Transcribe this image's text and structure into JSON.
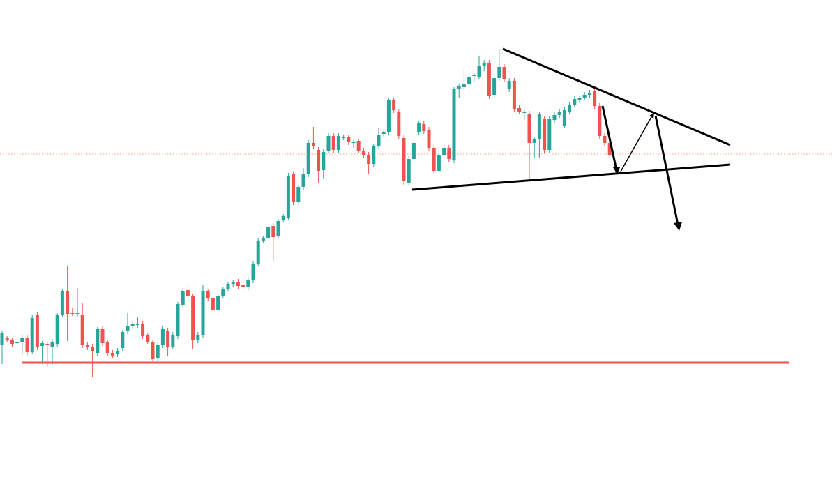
{
  "chart_data": {
    "type": "candlestick",
    "up_color": "#26a69a",
    "down_color": "#ef5350",
    "ylim": [
      0,
      717
    ],
    "open": [
      222,
      232,
      229,
      225,
      227,
      233,
      212,
      265,
      221,
      224,
      219,
      223,
      265,
      299,
      268,
      267,
      266,
      222,
      220,
      211,
      245,
      227,
      211,
      209,
      218,
      242,
      249,
      251,
      252,
      237,
      227,
      203,
      222,
      243,
      220,
      235,
      280,
      301,
      292,
      229,
      237,
      299,
      289,
      273,
      293,
      303,
      310,
      313,
      309,
      305,
      315,
      339,
      372,
      375,
      393,
      379,
      402,
      405,
      467,
      427,
      449,
      467,
      512,
      502,
      473,
      501,
      522,
      502,
      520,
      520,
      512,
      515,
      501,
      495,
      482,
      507,
      525,
      527,
      574,
      557,
      519,
      455,
      489,
      527,
      539,
      531,
      505,
      472,
      495,
      505,
      487,
      589,
      592,
      597,
      609,
      607,
      622,
      627,
      581,
      605,
      621,
      589,
      601,
      562,
      555,
      554,
      512,
      517,
      547,
      502,
      545,
      552,
      537,
      557,
      567,
      574,
      577,
      581,
      587,
      565,
      522,
      512
    ],
    "high": [
      242,
      235,
      232,
      230,
      236,
      236,
      265,
      269,
      228,
      227,
      231,
      268,
      302,
      335,
      275,
      304,
      282,
      226,
      223,
      248,
      249,
      230,
      215,
      218,
      244,
      268,
      256,
      262,
      256,
      240,
      230,
      226,
      249,
      247,
      241,
      284,
      304,
      310,
      296,
      241,
      309,
      303,
      293,
      297,
      306,
      313,
      315,
      317,
      320,
      320,
      343,
      376,
      379,
      395,
      397,
      403,
      410,
      469,
      470,
      452,
      476,
      516,
      535,
      506,
      503,
      526,
      526,
      526,
      524,
      523,
      516,
      518,
      505,
      499,
      510,
      534,
      530,
      577,
      577,
      561,
      523,
      493,
      516,
      544,
      543,
      535,
      509,
      507,
      510,
      509,
      592,
      597,
      619,
      611,
      613,
      637,
      631,
      631,
      609,
      647,
      625,
      605,
      605,
      566,
      561,
      558,
      521,
      557,
      551,
      551,
      556,
      560,
      563,
      571,
      579,
      580,
      585,
      588,
      591,
      569,
      526,
      516
    ],
    "low": [
      195,
      226,
      220,
      222,
      210,
      208,
      209,
      215,
      195,
      191,
      193,
      219,
      262,
      228,
      264,
      263,
      218,
      215,
      177,
      207,
      221,
      207,
      203,
      205,
      214,
      238,
      245,
      246,
      231,
      223,
      200,
      200,
      218,
      207,
      216,
      231,
      276,
      288,
      217,
      225,
      233,
      285,
      268,
      269,
      289,
      299,
      306,
      303,
      301,
      301,
      311,
      335,
      368,
      371,
      343,
      375,
      398,
      401,
      423,
      423,
      445,
      463,
      503,
      455,
      460,
      497,
      498,
      498,
      516,
      509,
      505,
      497,
      491,
      468,
      478,
      503,
      521,
      523,
      555,
      518,
      452,
      451,
      485,
      523,
      525,
      501,
      468,
      468,
      491,
      485,
      483,
      576,
      588,
      593,
      600,
      603,
      615,
      575,
      577,
      601,
      600,
      585,
      556,
      553,
      545,
      458,
      490,
      490,
      498,
      498,
      541,
      548,
      533,
      553,
      563,
      570,
      573,
      577,
      560,
      518,
      508,
      491
    ],
    "close": [
      240,
      229,
      224,
      227,
      233,
      212,
      261,
      219,
      225,
      222,
      227,
      265,
      299,
      267,
      267,
      268,
      222,
      219,
      213,
      245,
      225,
      211,
      207,
      214,
      241,
      249,
      252,
      252,
      235,
      227,
      202,
      222,
      245,
      220,
      237,
      281,
      300,
      292,
      229,
      237,
      299,
      289,
      272,
      293,
      303,
      310,
      312,
      307,
      305,
      315,
      339,
      372,
      375,
      392,
      377,
      400,
      407,
      465,
      427,
      449,
      467,
      512,
      507,
      472,
      499,
      522,
      502,
      522,
      520,
      513,
      513,
      501,
      495,
      482,
      507,
      524,
      527,
      574,
      559,
      522,
      457,
      489,
      512,
      541,
      529,
      505,
      472,
      495,
      505,
      489,
      589,
      593,
      597,
      607,
      609,
      622,
      627,
      579,
      605,
      621,
      604,
      601,
      560,
      557,
      557,
      512,
      517,
      554,
      502,
      547,
      552,
      557,
      559,
      567,
      575,
      577,
      581,
      584,
      565,
      522,
      512,
      495
    ]
  }
}
